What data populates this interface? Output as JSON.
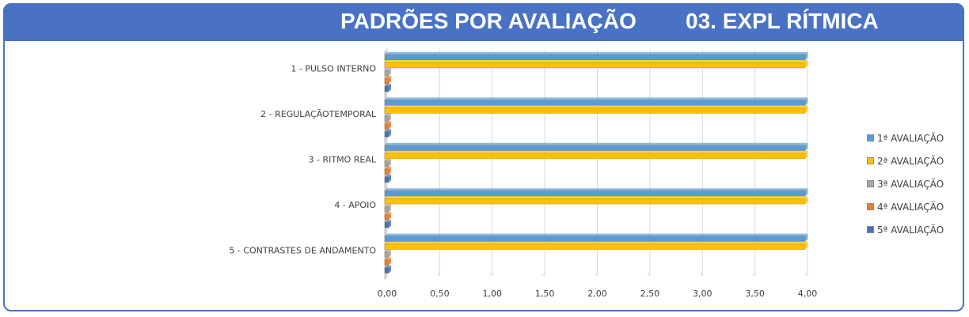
{
  "header": {
    "title": "PADRÕES POR AVALIAÇÃO",
    "subtitle": "03. EXPL RÍTMICA"
  },
  "chart_data": {
    "type": "bar",
    "orientation": "horizontal",
    "style": "3d-clustered",
    "categories": [
      "1 - PULSO INTERNO",
      "2 - REGULAÇÃOTEMPORAL",
      "3 - RITMO REAL",
      "4 - APOIO",
      "5 - CONTRASTES DE ANDAMENTO"
    ],
    "series": [
      {
        "name": "1ª AVALIAÇÃO",
        "color": "#5b9bd5",
        "values": [
          4,
          4,
          4,
          4,
          4
        ]
      },
      {
        "name": "2ª AVALIAÇÃO",
        "color": "#ffc000",
        "values": [
          4,
          4,
          4,
          4,
          4
        ]
      },
      {
        "name": "3ª AVALIAÇÃO",
        "color": "#a5a5a5",
        "values": [
          0,
          0,
          0,
          0,
          0
        ]
      },
      {
        "name": "4ª AVALIAÇÃO",
        "color": "#ed7d31",
        "values": [
          0,
          0,
          0,
          0,
          0
        ]
      },
      {
        "name": "5ª AVALIAÇÃO",
        "color": "#4472c4",
        "values": [
          0,
          0,
          0,
          0,
          0
        ]
      }
    ],
    "xticks": [
      "0,00",
      "0,50",
      "1,00",
      "1,50",
      "2,00",
      "2,50",
      "3,00",
      "3,50",
      "4,00"
    ],
    "xlim": [
      0,
      4
    ],
    "grid": true,
    "legend_position": "right"
  }
}
